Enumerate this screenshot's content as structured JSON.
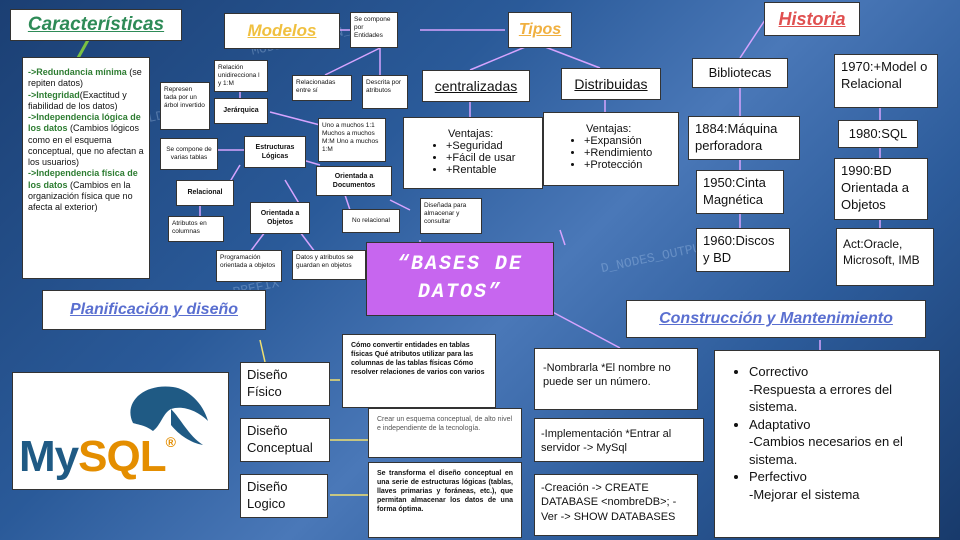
{
  "central": {
    "title": "“BASES DE DATOS”"
  },
  "caracteristicas": {
    "title": "Características",
    "items": [
      {
        "head": "->Redundancia mínima",
        "text": " (se repiten datos)"
      },
      {
        "head": "->Integridad",
        "text": "(Exactitud y fiabilidad de los datos)"
      },
      {
        "head": "->Independencia lógica de los datos",
        "text": " (Cambios lógicos como en el esquema conceptual, que no afectan a los usuarios)"
      },
      {
        "head": "->Independencia física de los datos",
        "text": " (Cambios en la organización física que no afecta al exterior)"
      }
    ]
  },
  "modelos": {
    "title": "Modelos",
    "nodes": {
      "entidades": "Se compone por Entidades",
      "relacion_uni": "Relación unidirecciona l y 1:M",
      "relacionadas": "Relacionadas entre sí",
      "descrita": "Descrita por atributos",
      "representada": "Represen tada por un árbol invertido",
      "jerarquica": "Jerárquica",
      "uno_muchos": "Uno a muchos 1:1 Muchos a muchos M:M Uno a muchos 1:M",
      "se_compone_tablas": "Se compone de varias tablas",
      "estructuras": "Estructuras Lógicas",
      "orientada_doc": "Orientada a Documentos",
      "relacional": "Relacional",
      "orientada_obj": "Orientada a Objetos",
      "no_relacional": "No relacional",
      "disenada": "Diseñada para almacenar y consultar",
      "atributos_columnas": "Atributos en columnas",
      "programacion": "Programación orientada a objetos",
      "datos_atributos": "Datos y atributos se guardan en objetos"
    }
  },
  "tipos": {
    "title": "Tipos",
    "centralizadas": {
      "label": "centralizadas",
      "head": "Ventajas:",
      "items": [
        "+Seguridad",
        "+Fácil de usar",
        "+Rentable"
      ]
    },
    "distribuidas": {
      "label": "Distribuidas",
      "head": "Ventajas:",
      "items": [
        "+Expansión",
        "+Rendimiento",
        "+Protección"
      ]
    }
  },
  "historia": {
    "title": "Historia",
    "bibliotecas": "Bibliotecas",
    "h1884": "1884:Máquina perforadora",
    "h1950": "1950:Cinta Magnética",
    "h1960": "1960:Discos y BD",
    "h1970": "1970:+Model o Relacional",
    "h1980": "1980:SQL",
    "h1990": "1990:BD Orientada a Objetos",
    "act": "Act:Oracle, Microsoft, IMB"
  },
  "planificacion": {
    "title": "Planificación y diseño",
    "fisico": "Diseño Físico",
    "fisico_desc": "Cómo convertir entidades en tablas físicas Qué atributos utilizar para las columnas de las tablas físicas Cómo resolver relaciones de varios con varios",
    "conceptual": "Diseño Conceptual",
    "conceptual_desc": "Crear un esquema conceptual, de alto nivel e independiente de la tecnología.",
    "logico": "Diseño Logico",
    "logico_desc": "Se transforma el diseño conceptual en una serie de estructuras lógicas (tablas, llaves primarias y foráneas, etc.), que permitan almacenar los datos de una forma óptima."
  },
  "construccion": {
    "title": "Construcción y Mantenimiento",
    "nombrar": "-Nombrarla *El nombre no puede ser un número.",
    "implementacion": "-Implementación *Entrar al servidor -> MySql",
    "creacion": "-Creación -> CREATE DATABASE <nombreDB>; -Ver -> SHOW DATABASES",
    "mantenimiento": [
      {
        "name": "Correctivo",
        "desc": "-Respuesta a errores del sistema."
      },
      {
        "name": "Adaptativo",
        "desc": "-Cambios necesarios en el sistema."
      },
      {
        "name": "Perfectivo",
        "desc": "-Mejorar el sistema"
      }
    ]
  },
  "logo": {
    "my": "My",
    "sql": "SQL",
    "reg": "®"
  },
  "background_code": [
    "MODIFICATION_DATE",
    "ATN_PUBLIC_FIELDS",
    "RSP_NODE_ID_PREFIX",
    "D_NODES_OUTPUT"
  ],
  "colors": {
    "central_bg": "#c766ef",
    "caract_title": "#2e8b57",
    "modelos_title": "#f0c040",
    "tipos_title": "#f0b040",
    "historia_title": "#e05050",
    "plan_title": "#5a6fd0",
    "green_text": "#2e7d32"
  }
}
